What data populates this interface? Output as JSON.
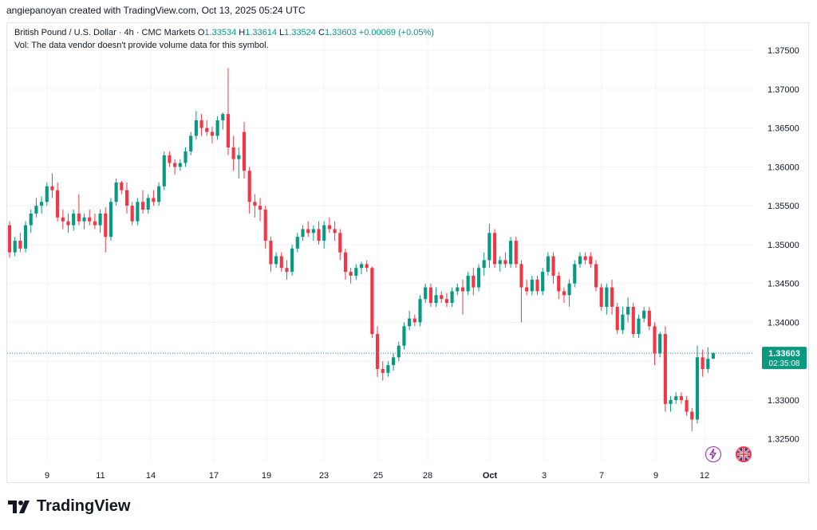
{
  "header": {
    "created_by": "angiepanoyan created with TradingView.com, Oct 13, 2025 05:24 UTC"
  },
  "legend": {
    "symbol": "British Pound / U.S. Dollar · 4h · CMC Markets",
    "o_label": "O",
    "o_value": "1.33534",
    "h_label": "H",
    "h_value": "1.33614",
    "l_label": "L",
    "l_value": "1.33524",
    "c_label": "C",
    "c_value": "1.33603",
    "change": "+0.00069 (+0.05%)",
    "vol_note": "Vol: The data vendor doesn't provide volume data for this symbol."
  },
  "price_tag": {
    "price": "1.33603",
    "countdown": "02:35:08"
  },
  "brand": {
    "name": "TradingView"
  },
  "colors": {
    "up": "#089981",
    "down": "#f23645",
    "grid": "#f0f3fa",
    "axis_text": "#131722"
  },
  "chart_data": {
    "type": "candlestick",
    "title": "British Pound / U.S. Dollar · 4h · CMC Markets",
    "ylim": [
      1.322,
      1.3785
    ],
    "y_ticks": [
      "1.37500",
      "1.37000",
      "1.36500",
      "1.36000",
      "1.35500",
      "1.35000",
      "1.34500",
      "1.34000",
      "1.33500",
      "1.33000",
      "1.32500"
    ],
    "x_ticks": [
      "9",
      "11",
      "14",
      "17",
      "19",
      "23",
      "25",
      "28",
      "Oct",
      "3",
      "7",
      "9",
      "12"
    ],
    "last_price": 1.33603,
    "series": [
      {
        "name": "c1",
        "o": 1.3525,
        "h": 1.353,
        "l": 1.3483,
        "c": 1.349
      },
      {
        "name": "c2",
        "o": 1.349,
        "h": 1.351,
        "l": 1.3485,
        "c": 1.3505
      },
      {
        "name": "c3",
        "o": 1.3505,
        "h": 1.3515,
        "l": 1.349,
        "c": 1.3495
      },
      {
        "name": "c4",
        "o": 1.3495,
        "h": 1.353,
        "l": 1.349,
        "c": 1.3525
      },
      {
        "name": "c5",
        "o": 1.3525,
        "h": 1.3545,
        "l": 1.3515,
        "c": 1.354
      },
      {
        "name": "c6",
        "o": 1.354,
        "h": 1.356,
        "l": 1.3535,
        "c": 1.355
      },
      {
        "name": "c7",
        "o": 1.355,
        "h": 1.3562,
        "l": 1.354,
        "c": 1.3555
      },
      {
        "name": "c8",
        "o": 1.3555,
        "h": 1.358,
        "l": 1.355,
        "c": 1.3575
      },
      {
        "name": "c9",
        "o": 1.3575,
        "h": 1.3592,
        "l": 1.356,
        "c": 1.357
      },
      {
        "name": "c10",
        "o": 1.357,
        "h": 1.358,
        "l": 1.353,
        "c": 1.3535
      },
      {
        "name": "c11",
        "o": 1.3535,
        "h": 1.3545,
        "l": 1.352,
        "c": 1.353
      },
      {
        "name": "c12",
        "o": 1.353,
        "h": 1.354,
        "l": 1.3515,
        "c": 1.3525
      },
      {
        "name": "c13",
        "o": 1.3525,
        "h": 1.3545,
        "l": 1.3518,
        "c": 1.354
      },
      {
        "name": "c14",
        "o": 1.354,
        "h": 1.3565,
        "l": 1.3525,
        "c": 1.353
      },
      {
        "name": "c15",
        "o": 1.353,
        "h": 1.354,
        "l": 1.352,
        "c": 1.3535
      },
      {
        "name": "c16",
        "o": 1.3535,
        "h": 1.3545,
        "l": 1.3525,
        "c": 1.353
      },
      {
        "name": "c17",
        "o": 1.353,
        "h": 1.354,
        "l": 1.352,
        "c": 1.3525
      },
      {
        "name": "c18",
        "o": 1.3525,
        "h": 1.3545,
        "l": 1.3515,
        "c": 1.354
      },
      {
        "name": "c19",
        "o": 1.354,
        "h": 1.3548,
        "l": 1.349,
        "c": 1.351
      },
      {
        "name": "c20",
        "o": 1.351,
        "h": 1.356,
        "l": 1.3505,
        "c": 1.3555
      },
      {
        "name": "c21",
        "o": 1.3555,
        "h": 1.3585,
        "l": 1.355,
        "c": 1.358
      },
      {
        "name": "c22",
        "o": 1.358,
        "h": 1.3582,
        "l": 1.3565,
        "c": 1.357
      },
      {
        "name": "c23",
        "o": 1.357,
        "h": 1.358,
        "l": 1.354,
        "c": 1.355
      },
      {
        "name": "c24",
        "o": 1.355,
        "h": 1.3555,
        "l": 1.3525,
        "c": 1.353
      },
      {
        "name": "c25",
        "o": 1.353,
        "h": 1.356,
        "l": 1.3525,
        "c": 1.3555
      },
      {
        "name": "c26",
        "o": 1.3555,
        "h": 1.357,
        "l": 1.354,
        "c": 1.3545
      },
      {
        "name": "c27",
        "o": 1.3545,
        "h": 1.3565,
        "l": 1.354,
        "c": 1.356
      },
      {
        "name": "c28",
        "o": 1.356,
        "h": 1.357,
        "l": 1.355,
        "c": 1.3555
      },
      {
        "name": "c29",
        "o": 1.3555,
        "h": 1.358,
        "l": 1.355,
        "c": 1.3575
      },
      {
        "name": "c30",
        "o": 1.3575,
        "h": 1.362,
        "l": 1.357,
        "c": 1.3615
      },
      {
        "name": "c31",
        "o": 1.3615,
        "h": 1.362,
        "l": 1.36,
        "c": 1.3605
      },
      {
        "name": "c32",
        "o": 1.3605,
        "h": 1.361,
        "l": 1.359,
        "c": 1.36
      },
      {
        "name": "c33",
        "o": 1.36,
        "h": 1.361,
        "l": 1.3595,
        "c": 1.3605
      },
      {
        "name": "c34",
        "o": 1.3605,
        "h": 1.3625,
        "l": 1.36,
        "c": 1.362
      },
      {
        "name": "c35",
        "o": 1.362,
        "h": 1.3645,
        "l": 1.3615,
        "c": 1.364
      },
      {
        "name": "c36",
        "o": 1.364,
        "h": 1.3672,
        "l": 1.3635,
        "c": 1.366
      },
      {
        "name": "c37",
        "o": 1.366,
        "h": 1.3668,
        "l": 1.364,
        "c": 1.365
      },
      {
        "name": "c38",
        "o": 1.365,
        "h": 1.366,
        "l": 1.364,
        "c": 1.3645
      },
      {
        "name": "c39",
        "o": 1.3645,
        "h": 1.3652,
        "l": 1.363,
        "c": 1.364
      },
      {
        "name": "c40",
        "o": 1.364,
        "h": 1.3665,
        "l": 1.3635,
        "c": 1.366
      },
      {
        "name": "c41",
        "o": 1.366,
        "h": 1.367,
        "l": 1.3648,
        "c": 1.3668
      },
      {
        "name": "c42",
        "o": 1.3668,
        "h": 1.3727,
        "l": 1.3615,
        "c": 1.3625
      },
      {
        "name": "c43",
        "o": 1.3625,
        "h": 1.364,
        "l": 1.3595,
        "c": 1.361
      },
      {
        "name": "c44",
        "o": 1.361,
        "h": 1.3625,
        "l": 1.3585,
        "c": 1.3615
      },
      {
        "name": "c45",
        "o": 1.3645,
        "h": 1.3658,
        "l": 1.3585,
        "c": 1.3595
      },
      {
        "name": "c46",
        "o": 1.3595,
        "h": 1.36,
        "l": 1.354,
        "c": 1.3555
      },
      {
        "name": "c47",
        "o": 1.3555,
        "h": 1.3565,
        "l": 1.3535,
        "c": 1.355
      },
      {
        "name": "c48",
        "o": 1.355,
        "h": 1.356,
        "l": 1.353,
        "c": 1.3545
      },
      {
        "name": "c49",
        "o": 1.3545,
        "h": 1.355,
        "l": 1.3495,
        "c": 1.3505
      },
      {
        "name": "c50",
        "o": 1.3505,
        "h": 1.351,
        "l": 1.3465,
        "c": 1.3475
      },
      {
        "name": "c51",
        "o": 1.3475,
        "h": 1.349,
        "l": 1.347,
        "c": 1.3485
      },
      {
        "name": "c52",
        "o": 1.3485,
        "h": 1.349,
        "l": 1.3465,
        "c": 1.347
      },
      {
        "name": "c53",
        "o": 1.347,
        "h": 1.348,
        "l": 1.3455,
        "c": 1.3465
      },
      {
        "name": "c54",
        "o": 1.3465,
        "h": 1.35,
        "l": 1.346,
        "c": 1.3495
      },
      {
        "name": "c55",
        "o": 1.3495,
        "h": 1.3515,
        "l": 1.349,
        "c": 1.351
      },
      {
        "name": "c56",
        "o": 1.351,
        "h": 1.3525,
        "l": 1.3505,
        "c": 1.352
      },
      {
        "name": "c57",
        "o": 1.352,
        "h": 1.353,
        "l": 1.351,
        "c": 1.3515
      },
      {
        "name": "c58",
        "o": 1.3515,
        "h": 1.3525,
        "l": 1.3505,
        "c": 1.352
      },
      {
        "name": "c59",
        "o": 1.352,
        "h": 1.353,
        "l": 1.35,
        "c": 1.3505
      },
      {
        "name": "c60",
        "o": 1.3505,
        "h": 1.353,
        "l": 1.3495,
        "c": 1.3525
      },
      {
        "name": "c61",
        "o": 1.3525,
        "h": 1.3535,
        "l": 1.3515,
        "c": 1.352
      },
      {
        "name": "c62",
        "o": 1.352,
        "h": 1.353,
        "l": 1.3505,
        "c": 1.3515
      },
      {
        "name": "c63",
        "o": 1.3515,
        "h": 1.352,
        "l": 1.348,
        "c": 1.349
      },
      {
        "name": "c64",
        "o": 1.349,
        "h": 1.3495,
        "l": 1.3455,
        "c": 1.3465
      },
      {
        "name": "c65",
        "o": 1.3465,
        "h": 1.347,
        "l": 1.345,
        "c": 1.346
      },
      {
        "name": "c66",
        "o": 1.346,
        "h": 1.3475,
        "l": 1.3455,
        "c": 1.347
      },
      {
        "name": "c67",
        "o": 1.347,
        "h": 1.3478,
        "l": 1.3462,
        "c": 1.3475
      },
      {
        "name": "c68",
        "o": 1.3475,
        "h": 1.348,
        "l": 1.3465,
        "c": 1.347
      },
      {
        "name": "c69",
        "o": 1.347,
        "h": 1.3472,
        "l": 1.338,
        "c": 1.3385
      },
      {
        "name": "c70",
        "o": 1.3385,
        "h": 1.3395,
        "l": 1.333,
        "c": 1.334
      },
      {
        "name": "c71",
        "o": 1.334,
        "h": 1.335,
        "l": 1.3325,
        "c": 1.3335
      },
      {
        "name": "c72",
        "o": 1.3335,
        "h": 1.335,
        "l": 1.333,
        "c": 1.3345
      },
      {
        "name": "c73",
        "o": 1.3345,
        "h": 1.336,
        "l": 1.3338,
        "c": 1.3355
      },
      {
        "name": "c74",
        "o": 1.3355,
        "h": 1.3375,
        "l": 1.335,
        "c": 1.337
      },
      {
        "name": "c75",
        "o": 1.337,
        "h": 1.34,
        "l": 1.3365,
        "c": 1.3395
      },
      {
        "name": "c76",
        "o": 1.3395,
        "h": 1.3415,
        "l": 1.339,
        "c": 1.3405
      },
      {
        "name": "c77",
        "o": 1.3405,
        "h": 1.341,
        "l": 1.3395,
        "c": 1.34
      },
      {
        "name": "c78",
        "o": 1.34,
        "h": 1.3435,
        "l": 1.3395,
        "c": 1.343
      },
      {
        "name": "c79",
        "o": 1.343,
        "h": 1.345,
        "l": 1.3425,
        "c": 1.3445
      },
      {
        "name": "c80",
        "o": 1.3445,
        "h": 1.345,
        "l": 1.342,
        "c": 1.3425
      },
      {
        "name": "c81",
        "o": 1.3425,
        "h": 1.3445,
        "l": 1.342,
        "c": 1.3435
      },
      {
        "name": "c82",
        "o": 1.3435,
        "h": 1.344,
        "l": 1.3425,
        "c": 1.343
      },
      {
        "name": "c83",
        "o": 1.343,
        "h": 1.3438,
        "l": 1.342,
        "c": 1.3425
      },
      {
        "name": "c84",
        "o": 1.3425,
        "h": 1.3445,
        "l": 1.342,
        "c": 1.344
      },
      {
        "name": "c85",
        "o": 1.344,
        "h": 1.345,
        "l": 1.3435,
        "c": 1.3445
      },
      {
        "name": "c86",
        "o": 1.3445,
        "h": 1.3455,
        "l": 1.341,
        "c": 1.344
      },
      {
        "name": "c87",
        "o": 1.344,
        "h": 1.3465,
        "l": 1.3435,
        "c": 1.346
      },
      {
        "name": "c88",
        "o": 1.346,
        "h": 1.347,
        "l": 1.3435,
        "c": 1.3445
      },
      {
        "name": "c89",
        "o": 1.3445,
        "h": 1.3475,
        "l": 1.344,
        "c": 1.347
      },
      {
        "name": "c90",
        "o": 1.347,
        "h": 1.349,
        "l": 1.346,
        "c": 1.348
      },
      {
        "name": "c91",
        "o": 1.348,
        "h": 1.3527,
        "l": 1.347,
        "c": 1.3515
      },
      {
        "name": "c92",
        "o": 1.3515,
        "h": 1.352,
        "l": 1.347,
        "c": 1.3475
      },
      {
        "name": "c93",
        "o": 1.3475,
        "h": 1.3485,
        "l": 1.3465,
        "c": 1.348
      },
      {
        "name": "c94",
        "o": 1.348,
        "h": 1.349,
        "l": 1.347,
        "c": 1.3475
      },
      {
        "name": "c95",
        "o": 1.3475,
        "h": 1.351,
        "l": 1.347,
        "c": 1.3505
      },
      {
        "name": "c96",
        "o": 1.3505,
        "h": 1.351,
        "l": 1.347,
        "c": 1.3475
      },
      {
        "name": "c97",
        "o": 1.3475,
        "h": 1.348,
        "l": 1.34,
        "c": 1.3445
      },
      {
        "name": "c98",
        "o": 1.3445,
        "h": 1.3455,
        "l": 1.3435,
        "c": 1.344
      },
      {
        "name": "c99",
        "o": 1.344,
        "h": 1.346,
        "l": 1.3435,
        "c": 1.3455
      },
      {
        "name": "c100",
        "o": 1.3455,
        "h": 1.346,
        "l": 1.3435,
        "c": 1.344
      },
      {
        "name": "c101",
        "o": 1.344,
        "h": 1.347,
        "l": 1.3435,
        "c": 1.3465
      },
      {
        "name": "c102",
        "o": 1.3465,
        "h": 1.349,
        "l": 1.346,
        "c": 1.3485
      },
      {
        "name": "c103",
        "o": 1.3485,
        "h": 1.349,
        "l": 1.345,
        "c": 1.346
      },
      {
        "name": "c104",
        "o": 1.346,
        "h": 1.3465,
        "l": 1.343,
        "c": 1.344
      },
      {
        "name": "c105",
        "o": 1.344,
        "h": 1.3445,
        "l": 1.3425,
        "c": 1.3435
      },
      {
        "name": "c106",
        "o": 1.3435,
        "h": 1.3455,
        "l": 1.342,
        "c": 1.345
      },
      {
        "name": "c107",
        "o": 1.345,
        "h": 1.348,
        "l": 1.3445,
        "c": 1.3475
      },
      {
        "name": "c108",
        "o": 1.3475,
        "h": 1.349,
        "l": 1.347,
        "c": 1.3485
      },
      {
        "name": "c109",
        "o": 1.3485,
        "h": 1.349,
        "l": 1.3475,
        "c": 1.348
      },
      {
        "name": "c110",
        "o": 1.3485,
        "h": 1.349,
        "l": 1.347,
        "c": 1.3475
      },
      {
        "name": "c111",
        "o": 1.3475,
        "h": 1.348,
        "l": 1.344,
        "c": 1.3445
      },
      {
        "name": "c112",
        "o": 1.3445,
        "h": 1.345,
        "l": 1.3415,
        "c": 1.342
      },
      {
        "name": "c113",
        "o": 1.342,
        "h": 1.345,
        "l": 1.341,
        "c": 1.3445
      },
      {
        "name": "c114",
        "o": 1.3445,
        "h": 1.3455,
        "l": 1.341,
        "c": 1.342
      },
      {
        "name": "c115",
        "o": 1.342,
        "h": 1.3425,
        "l": 1.3385,
        "c": 1.339
      },
      {
        "name": "c116",
        "o": 1.339,
        "h": 1.342,
        "l": 1.3385,
        "c": 1.341
      },
      {
        "name": "c117",
        "o": 1.341,
        "h": 1.3432,
        "l": 1.34,
        "c": 1.342
      },
      {
        "name": "c118",
        "o": 1.342,
        "h": 1.3425,
        "l": 1.338,
        "c": 1.3385
      },
      {
        "name": "c119",
        "o": 1.3385,
        "h": 1.341,
        "l": 1.338,
        "c": 1.3405
      },
      {
        "name": "c120",
        "o": 1.3405,
        "h": 1.342,
        "l": 1.34,
        "c": 1.3415
      },
      {
        "name": "c121",
        "o": 1.3415,
        "h": 1.342,
        "l": 1.339,
        "c": 1.3395
      },
      {
        "name": "c122",
        "o": 1.3395,
        "h": 1.34,
        "l": 1.3345,
        "c": 1.336
      },
      {
        "name": "c123",
        "o": 1.336,
        "h": 1.3388,
        "l": 1.3355,
        "c": 1.3385
      },
      {
        "name": "c124",
        "o": 1.3385,
        "h": 1.3395,
        "l": 1.3285,
        "c": 1.3295
      },
      {
        "name": "c125",
        "o": 1.3295,
        "h": 1.3305,
        "l": 1.3285,
        "c": 1.33
      },
      {
        "name": "c126",
        "o": 1.33,
        "h": 1.331,
        "l": 1.3295,
        "c": 1.3305
      },
      {
        "name": "c127",
        "o": 1.3305,
        "h": 1.331,
        "l": 1.3295,
        "c": 1.33
      },
      {
        "name": "c128",
        "o": 1.33,
        "h": 1.3305,
        "l": 1.328,
        "c": 1.3285
      },
      {
        "name": "c129",
        "o": 1.3285,
        "h": 1.329,
        "l": 1.326,
        "c": 1.3275
      },
      {
        "name": "c130",
        "o": 1.3275,
        "h": 1.337,
        "l": 1.327,
        "c": 1.3355
      },
      {
        "name": "c131",
        "o": 1.3355,
        "h": 1.3365,
        "l": 1.333,
        "c": 1.334
      },
      {
        "name": "c132",
        "o": 1.334,
        "h": 1.3368,
        "l": 1.3335,
        "c": 1.3353
      },
      {
        "name": "c133",
        "o": 1.33534,
        "h": 1.33614,
        "l": 1.33524,
        "c": 1.33603
      }
    ]
  }
}
